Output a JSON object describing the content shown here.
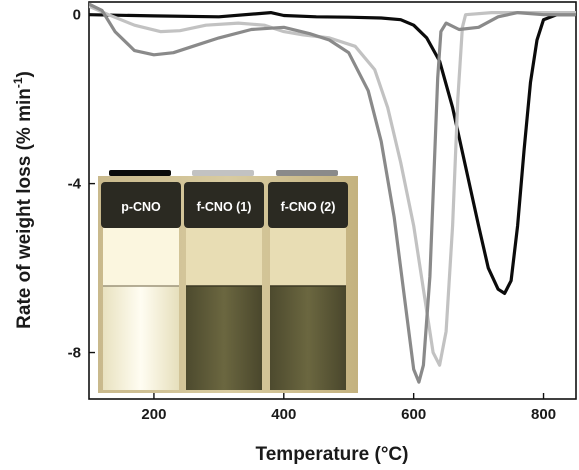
{
  "chart_data": {
    "type": "line",
    "xlabel": "Temperature (°C)",
    "ylabel_main": "Rate of weight loss (% min",
    "ylabel_sup": "-1",
    "ylabel_close": ")",
    "xlim": [
      100,
      850
    ],
    "ylim": [
      -9.1,
      0.3
    ],
    "xticks": [
      200,
      400,
      600,
      800
    ],
    "yticks": [
      0,
      -4,
      -8
    ],
    "grid": false,
    "series": [
      {
        "name": "p-CNO",
        "color": "#0b0b0b",
        "points": [
          [
            100,
            0.0
          ],
          [
            200,
            -0.03
          ],
          [
            300,
            -0.05
          ],
          [
            380,
            0.05
          ],
          [
            400,
            -0.02
          ],
          [
            450,
            -0.05
          ],
          [
            500,
            -0.06
          ],
          [
            550,
            -0.08
          ],
          [
            580,
            -0.12
          ],
          [
            600,
            -0.25
          ],
          [
            620,
            -0.55
          ],
          [
            640,
            -1.1
          ],
          [
            660,
            -2.2
          ],
          [
            680,
            -3.6
          ],
          [
            700,
            -5.0
          ],
          [
            715,
            -6.0
          ],
          [
            730,
            -6.5
          ],
          [
            740,
            -6.6
          ],
          [
            750,
            -6.3
          ],
          [
            760,
            -5.0
          ],
          [
            770,
            -3.2
          ],
          [
            780,
            -1.6
          ],
          [
            790,
            -0.6
          ],
          [
            800,
            -0.12
          ],
          [
            820,
            0.0
          ],
          [
            850,
            0.0
          ]
        ]
      },
      {
        "name": "f-CNO (1)",
        "color": "#c2c2c2",
        "points": [
          [
            100,
            0.2
          ],
          [
            130,
            0.0
          ],
          [
            170,
            -0.25
          ],
          [
            210,
            -0.4
          ],
          [
            240,
            -0.38
          ],
          [
            280,
            -0.25
          ],
          [
            330,
            -0.2
          ],
          [
            370,
            -0.25
          ],
          [
            400,
            -0.4
          ],
          [
            430,
            -0.48
          ],
          [
            470,
            -0.55
          ],
          [
            510,
            -0.75
          ],
          [
            540,
            -1.3
          ],
          [
            560,
            -2.2
          ],
          [
            580,
            -3.5
          ],
          [
            600,
            -5.0
          ],
          [
            615,
            -6.5
          ],
          [
            630,
            -8.0
          ],
          [
            640,
            -8.3
          ],
          [
            650,
            -7.5
          ],
          [
            660,
            -5.0
          ],
          [
            668,
            -2.0
          ],
          [
            675,
            -0.3
          ],
          [
            680,
            0.0
          ],
          [
            720,
            0.05
          ],
          [
            760,
            0.05
          ],
          [
            850,
            0.05
          ]
        ]
      },
      {
        "name": "f-CNO (2)",
        "color": "#8a8a8a",
        "points": [
          [
            100,
            0.25
          ],
          [
            120,
            0.1
          ],
          [
            140,
            -0.4
          ],
          [
            170,
            -0.85
          ],
          [
            200,
            -0.95
          ],
          [
            230,
            -0.9
          ],
          [
            260,
            -0.75
          ],
          [
            300,
            -0.55
          ],
          [
            350,
            -0.35
          ],
          [
            400,
            -0.3
          ],
          [
            440,
            -0.45
          ],
          [
            470,
            -0.6
          ],
          [
            500,
            -0.9
          ],
          [
            530,
            -1.8
          ],
          [
            550,
            -3.0
          ],
          [
            570,
            -4.8
          ],
          [
            590,
            -7.2
          ],
          [
            600,
            -8.4
          ],
          [
            608,
            -8.7
          ],
          [
            615,
            -8.3
          ],
          [
            625,
            -6.2
          ],
          [
            632,
            -3.5
          ],
          [
            637,
            -1.5
          ],
          [
            642,
            -0.4
          ],
          [
            650,
            -0.2
          ],
          [
            670,
            -0.35
          ],
          [
            700,
            -0.3
          ],
          [
            730,
            -0.05
          ],
          [
            760,
            0.05
          ],
          [
            800,
            0.0
          ],
          [
            850,
            0.0
          ]
        ]
      }
    ]
  },
  "inset": {
    "labels": [
      "p-CNO",
      "f-CNO (1)",
      "f-CNO (2)"
    ],
    "swatch_colors": [
      "#0b0b0b",
      "#c2c2c2",
      "#8a8a8a"
    ]
  }
}
